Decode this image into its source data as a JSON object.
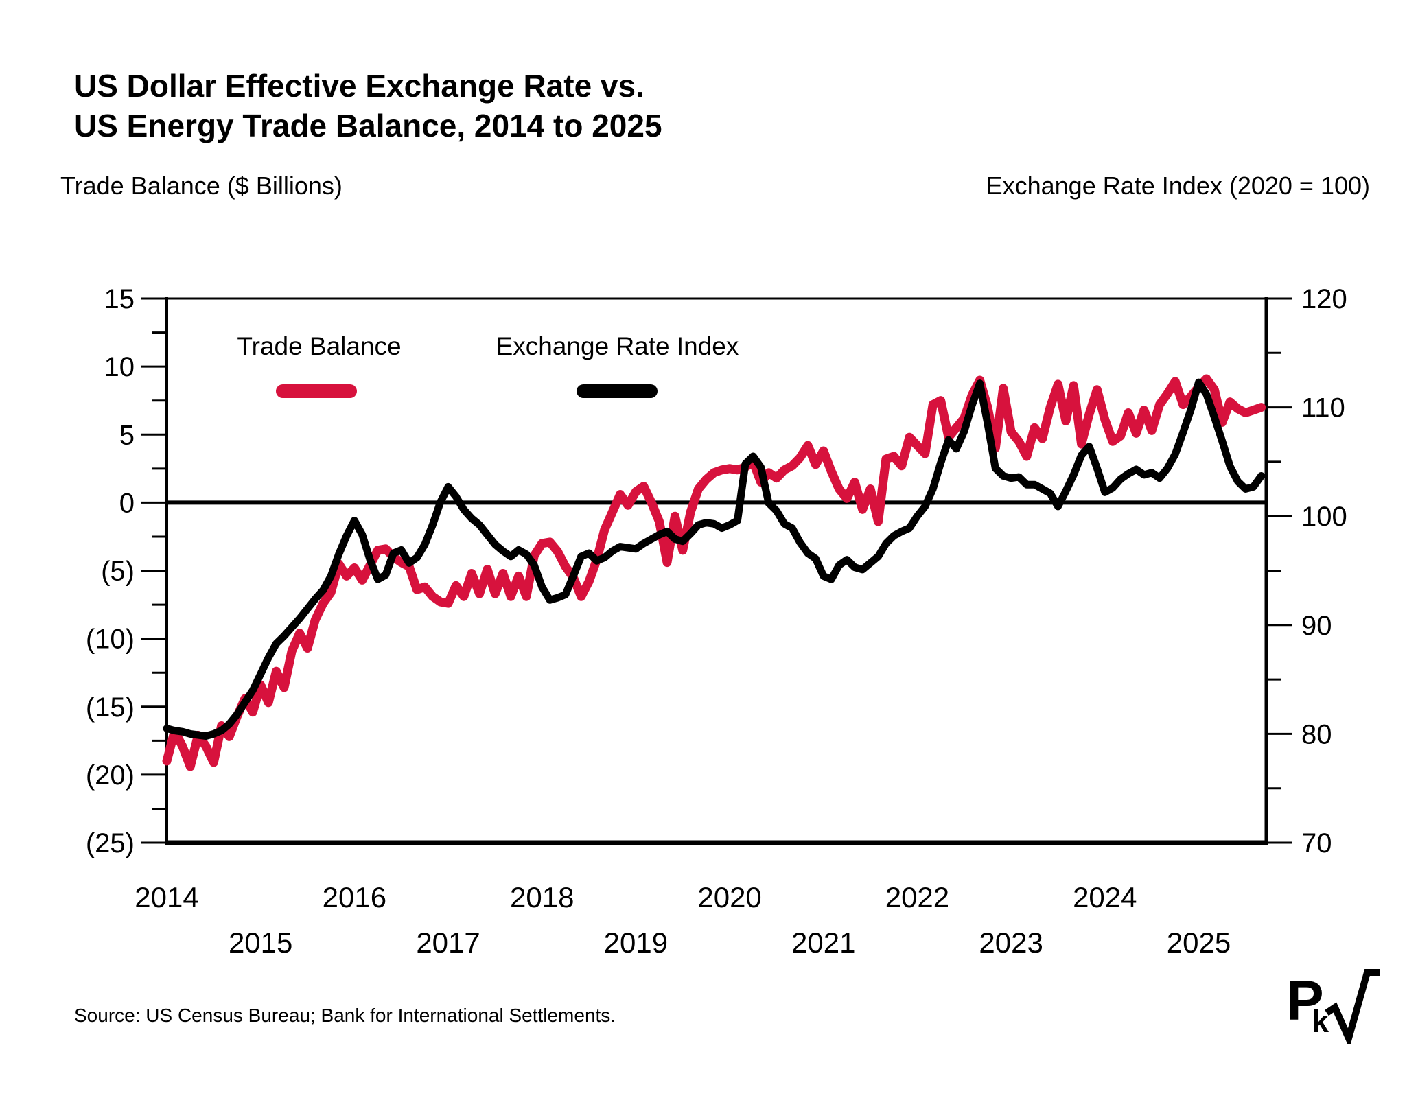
{
  "title": "US Dollar Effective Exchange Rate vs.\nUS Energy Trade Balance, 2014 to 2025",
  "axis_headers": {
    "left": "Trade Balance ($ Billions)",
    "right": "Exchange Rate Index (2020 = 100)"
  },
  "legend": {
    "trade_balance_label": "Trade Balance",
    "exchange_rate_label": "Exchange Rate Index"
  },
  "source": "Source: US Census Bureau; Bank for International Settlements.",
  "logo": {
    "letter_p": "P",
    "letter_k": "k",
    "radical_icon": "square-root-check"
  },
  "colors": {
    "trade_balance": "#D7123D",
    "exchange_rate": "#000000",
    "background": "#FFFFFF"
  },
  "chart_data": {
    "type": "line",
    "title": "US Dollar Effective Exchange Rate vs. US Energy Trade Balance, 2014 to 2025",
    "x_start_month": "2014-01",
    "x_end_month": "2025-09",
    "x_year_labels": [
      "2014",
      "2015",
      "2016",
      "2017",
      "2018",
      "2019",
      "2020",
      "2021",
      "2022",
      "2023",
      "2024",
      "2025"
    ],
    "grid": false,
    "legend_position": "top-left-inside",
    "left_axis": {
      "label": "Trade Balance ($ Billions)",
      "min": -25,
      "max": 15,
      "major_step": 5,
      "minor_step": 2.5,
      "tick_labels": [
        "15",
        "10",
        "5",
        "0",
        "(5)",
        "(10)",
        "(15)",
        "(20)",
        "(25)"
      ]
    },
    "right_axis": {
      "label": "Exchange Rate Index (2020 = 100)",
      "min": 70,
      "max": 120,
      "major_step": 10,
      "minor_step": 5,
      "tick_labels": [
        "120",
        "110",
        "100",
        "90",
        "80",
        "70"
      ]
    },
    "zero_line": {
      "axis": "left",
      "value": 0
    },
    "series": [
      {
        "name": "Trade Balance",
        "axis": "left",
        "color": "#D7123D",
        "stroke_width": 13,
        "monthly_values": [
          -19.0,
          -16.8,
          -17.9,
          -19.4,
          -17.1,
          -17.9,
          -19.1,
          -16.4,
          -17.2,
          -15.7,
          -14.4,
          -15.4,
          -13.4,
          -14.7,
          -12.4,
          -13.6,
          -10.9,
          -9.6,
          -10.7,
          -8.6,
          -7.4,
          -6.6,
          -4.5,
          -5.4,
          -4.8,
          -5.7,
          -4.6,
          -3.5,
          -3.4,
          -4.0,
          -4.4,
          -4.7,
          -6.4,
          -6.2,
          -6.9,
          -7.3,
          -7.4,
          -6.1,
          -6.9,
          -5.2,
          -6.7,
          -4.9,
          -6.7,
          -5.2,
          -6.9,
          -5.4,
          -6.9,
          -3.9,
          -3.0,
          -2.9,
          -3.6,
          -4.7,
          -5.5,
          -6.9,
          -5.8,
          -4.2,
          -2.0,
          -0.7,
          0.6,
          -0.2,
          0.8,
          1.2,
          0.0,
          -1.4,
          -4.4,
          -1.0,
          -3.5,
          -0.7,
          1.0,
          1.7,
          2.2,
          2.4,
          2.5,
          2.4,
          2.6,
          3.0,
          1.5,
          2.2,
          1.8,
          2.4,
          2.7,
          3.3,
          4.2,
          2.8,
          3.8,
          2.3,
          1.0,
          0.3,
          1.5,
          -0.5,
          1.0,
          -1.4,
          3.2,
          3.4,
          2.7,
          4.8,
          4.2,
          3.6,
          7.2,
          7.5,
          4.8,
          5.5,
          6.2,
          7.9,
          9.0,
          7.0,
          4.0,
          8.4,
          5.2,
          4.5,
          3.4,
          5.5,
          4.7,
          7.0,
          8.7,
          6.0,
          8.6,
          4.3,
          6.5,
          8.3,
          6.1,
          4.5,
          4.9,
          6.6,
          5.1,
          6.8,
          5.3,
          7.2,
          8.0,
          8.9,
          7.2,
          7.8,
          8.5,
          9.1,
          8.3,
          5.9,
          7.4,
          6.9,
          6.6,
          6.8,
          7.0
        ]
      },
      {
        "name": "Exchange Rate Index",
        "axis": "right",
        "color": "#000000",
        "stroke_width": 11,
        "monthly_values": [
          80.5,
          80.3,
          80.2,
          80.0,
          79.9,
          79.8,
          80.0,
          80.3,
          80.9,
          81.8,
          82.9,
          84.0,
          85.5,
          87.0,
          88.3,
          89.0,
          89.8,
          90.6,
          91.5,
          92.4,
          93.2,
          94.5,
          96.5,
          98.2,
          99.6,
          98.3,
          96.0,
          94.2,
          94.6,
          96.6,
          96.9,
          95.7,
          96.2,
          97.4,
          99.2,
          101.3,
          102.7,
          101.8,
          100.6,
          99.8,
          99.2,
          98.3,
          97.4,
          96.8,
          96.3,
          96.9,
          96.5,
          95.5,
          93.5,
          92.3,
          92.5,
          92.8,
          94.5,
          96.3,
          96.6,
          95.9,
          96.2,
          96.8,
          97.2,
          97.1,
          97.0,
          97.5,
          97.9,
          98.3,
          98.6,
          97.9,
          97.7,
          98.4,
          99.2,
          99.4,
          99.3,
          98.9,
          99.2,
          99.6,
          104.8,
          105.5,
          104.5,
          101.2,
          100.5,
          99.3,
          98.9,
          97.6,
          96.6,
          96.1,
          94.5,
          94.2,
          95.5,
          96.0,
          95.3,
          95.1,
          95.7,
          96.3,
          97.5,
          98.2,
          98.6,
          98.9,
          100.0,
          100.9,
          102.5,
          104.9,
          107.0,
          106.2,
          107.8,
          110.2,
          112.2,
          108.5,
          104.4,
          103.7,
          103.5,
          103.6,
          102.9,
          102.9,
          102.5,
          102.1,
          100.9,
          102.3,
          103.8,
          105.6,
          106.4,
          104.4,
          102.2,
          102.6,
          103.4,
          103.9,
          104.3,
          103.8,
          104.0,
          103.5,
          104.4,
          105.7,
          107.7,
          109.8,
          112.3,
          111.2,
          109.1,
          106.9,
          104.6,
          103.2,
          102.5,
          102.7,
          103.7
        ]
      }
    ]
  }
}
